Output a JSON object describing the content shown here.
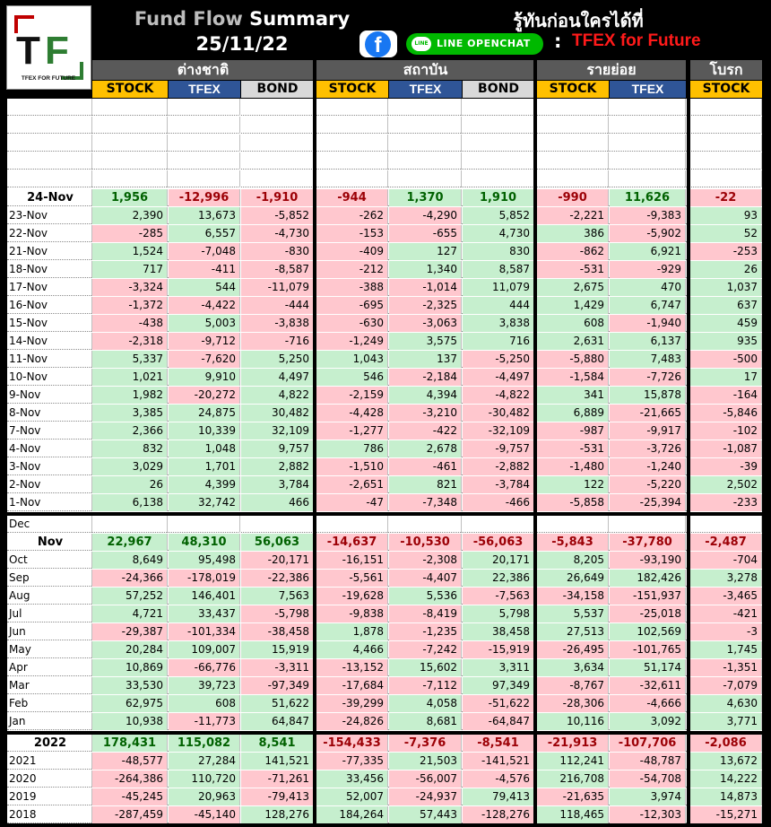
{
  "header": {
    "title_a": "Fund Flow",
    "title_b": "Summary",
    "date": "25/11/22",
    "thai_text": "รู้ทันก่อนใครได้ที่",
    "facebook": "f",
    "line": "LINE OPENCHAT",
    "line_icon": "LINE",
    "colon": ":",
    "channel": "TFEX for Future",
    "logo_text": "TFEX F R FUTURE",
    "logo_letters": "TF"
  },
  "groups": [
    "ต่างชาติ",
    "สถาบัน",
    "รายย่อย",
    "โบรก"
  ],
  "subheaders": [
    "STOCK",
    "TFEX",
    "BOND",
    "STOCK",
    "TFEX",
    "BOND",
    "STOCK",
    "TFEX",
    "STOCK"
  ],
  "colors": {
    "pos": "#c6efce",
    "neg": "#ffc7ce",
    "stock": "#ffc000",
    "tfex": "#2f5597",
    "bond": "#d9d9d9"
  },
  "daily_summary": {
    "label": "24-Nov",
    "values": [
      "1,956",
      "-12,996",
      "-1,910",
      "-944",
      "1,370",
      "1,910",
      "-990",
      "11,626",
      "-22"
    ]
  },
  "daily": [
    {
      "label": "23-Nov",
      "values": [
        "2,390",
        "13,673",
        "-5,852",
        "-262",
        "-4,290",
        "5,852",
        "-2,221",
        "-9,383",
        "93"
      ]
    },
    {
      "label": "22-Nov",
      "values": [
        "-285",
        "6,557",
        "-4,730",
        "-153",
        "-655",
        "4,730",
        "386",
        "-5,902",
        "52"
      ]
    },
    {
      "label": "21-Nov",
      "values": [
        "1,524",
        "-7,048",
        "-830",
        "-409",
        "127",
        "830",
        "-862",
        "6,921",
        "-253"
      ]
    },
    {
      "label": "18-Nov",
      "values": [
        "717",
        "-411",
        "-8,587",
        "-212",
        "1,340",
        "8,587",
        "-531",
        "-929",
        "26"
      ]
    },
    {
      "label": "17-Nov",
      "values": [
        "-3,324",
        "544",
        "-11,079",
        "-388",
        "-1,014",
        "11,079",
        "2,675",
        "470",
        "1,037"
      ]
    },
    {
      "label": "16-Nov",
      "values": [
        "-1,372",
        "-4,422",
        "-444",
        "-695",
        "-2,325",
        "444",
        "1,429",
        "6,747",
        "637"
      ]
    },
    {
      "label": "15-Nov",
      "values": [
        "-438",
        "5,003",
        "-3,838",
        "-630",
        "-3,063",
        "3,838",
        "608",
        "-1,940",
        "459"
      ]
    },
    {
      "label": "14-Nov",
      "values": [
        "-2,318",
        "-9,712",
        "-716",
        "-1,249",
        "3,575",
        "716",
        "2,631",
        "6,137",
        "935"
      ]
    },
    {
      "label": "11-Nov",
      "values": [
        "5,337",
        "-7,620",
        "5,250",
        "1,043",
        "137",
        "-5,250",
        "-5,880",
        "7,483",
        "-500"
      ]
    },
    {
      "label": "10-Nov",
      "values": [
        "1,021",
        "9,910",
        "4,497",
        "546",
        "-2,184",
        "-4,497",
        "-1,584",
        "-7,726",
        "17"
      ]
    },
    {
      "label": "9-Nov",
      "values": [
        "1,982",
        "-20,272",
        "4,822",
        "-2,159",
        "4,394",
        "-4,822",
        "341",
        "15,878",
        "-164"
      ]
    },
    {
      "label": "8-Nov",
      "values": [
        "3,385",
        "24,875",
        "30,482",
        "-4,428",
        "-3,210",
        "-30,482",
        "6,889",
        "-21,665",
        "-5,846"
      ]
    },
    {
      "label": "7-Nov",
      "values": [
        "2,366",
        "10,339",
        "32,109",
        "-1,277",
        "-422",
        "-32,109",
        "-987",
        "-9,917",
        "-102"
      ]
    },
    {
      "label": "4-Nov",
      "values": [
        "832",
        "1,048",
        "9,757",
        "786",
        "2,678",
        "-9,757",
        "-531",
        "-3,726",
        "-1,087"
      ]
    },
    {
      "label": "3-Nov",
      "values": [
        "3,029",
        "1,701",
        "2,882",
        "-1,510",
        "-461",
        "-2,882",
        "-1,480",
        "-1,240",
        "-39"
      ]
    },
    {
      "label": "2-Nov",
      "values": [
        "26",
        "4,399",
        "3,784",
        "-2,651",
        "821",
        "-3,784",
        "122",
        "-5,220",
        "2,502"
      ]
    },
    {
      "label": "1-Nov",
      "values": [
        "6,138",
        "32,742",
        "466",
        "-47",
        "-7,348",
        "-466",
        "-5,858",
        "-25,394",
        "-233"
      ]
    }
  ],
  "monthly_first": {
    "label": "Dec"
  },
  "monthly_summary": {
    "label": "Nov",
    "values": [
      "22,967",
      "48,310",
      "56,063",
      "-14,637",
      "-10,530",
      "-56,063",
      "-5,843",
      "-37,780",
      "-2,487"
    ]
  },
  "monthly": [
    {
      "label": "Oct",
      "values": [
        "8,649",
        "95,498",
        "-20,171",
        "-16,151",
        "-2,308",
        "20,171",
        "8,205",
        "-93,190",
        "-704"
      ]
    },
    {
      "label": "Sep",
      "values": [
        "-24,366",
        "-178,019",
        "-22,386",
        "-5,561",
        "-4,407",
        "22,386",
        "26,649",
        "182,426",
        "3,278"
      ]
    },
    {
      "label": "Aug",
      "values": [
        "57,252",
        "146,401",
        "7,563",
        "-19,628",
        "5,536",
        "-7,563",
        "-34,158",
        "-151,937",
        "-3,465"
      ]
    },
    {
      "label": "Jul",
      "values": [
        "4,721",
        "33,437",
        "-5,798",
        "-9,838",
        "-8,419",
        "5,798",
        "5,537",
        "-25,018",
        "-421"
      ]
    },
    {
      "label": "Jun",
      "values": [
        "-29,387",
        "-101,334",
        "-38,458",
        "1,878",
        "-1,235",
        "38,458",
        "27,513",
        "102,569",
        "-3"
      ]
    },
    {
      "label": "May",
      "values": [
        "20,284",
        "109,007",
        "15,919",
        "4,466",
        "-7,242",
        "-15,919",
        "-26,495",
        "-101,765",
        "1,745"
      ]
    },
    {
      "label": "Apr",
      "values": [
        "10,869",
        "-66,776",
        "-3,311",
        "-13,152",
        "15,602",
        "3,311",
        "3,634",
        "51,174",
        "-1,351"
      ]
    },
    {
      "label": "Mar",
      "values": [
        "33,530",
        "39,723",
        "-97,349",
        "-17,684",
        "-7,112",
        "97,349",
        "-8,767",
        "-32,611",
        "-7,079"
      ]
    },
    {
      "label": "Feb",
      "values": [
        "62,975",
        "608",
        "51,622",
        "-39,299",
        "4,058",
        "-51,622",
        "-28,306",
        "-4,666",
        "4,630"
      ]
    },
    {
      "label": "Jan",
      "values": [
        "10,938",
        "-11,773",
        "64,847",
        "-24,826",
        "8,681",
        "-64,847",
        "10,116",
        "3,092",
        "3,771"
      ]
    }
  ],
  "yearly_summary": {
    "label": "2022",
    "values": [
      "178,431",
      "115,082",
      "8,541",
      "-154,433",
      "-7,376",
      "-8,541",
      "-21,913",
      "-107,706",
      "-2,086"
    ]
  },
  "yearly": [
    {
      "label": "2021",
      "values": [
        "-48,577",
        "27,284",
        "141,521",
        "-77,335",
        "21,503",
        "-141,521",
        "112,241",
        "-48,787",
        "13,672"
      ]
    },
    {
      "label": "2020",
      "values": [
        "-264,386",
        "110,720",
        "-71,261",
        "33,456",
        "-56,007",
        "-4,576",
        "216,708",
        "-54,708",
        "14,222"
      ]
    },
    {
      "label": "2019",
      "values": [
        "-45,245",
        "20,963",
        "-79,413",
        "52,007",
        "-24,937",
        "79,413",
        "-21,635",
        "3,974",
        "14,873"
      ]
    },
    {
      "label": "2018",
      "values": [
        "-287,459",
        "-45,140",
        "128,276",
        "184,264",
        "57,443",
        "-128,276",
        "118,465",
        "-12,303",
        "-15,271"
      ]
    }
  ]
}
